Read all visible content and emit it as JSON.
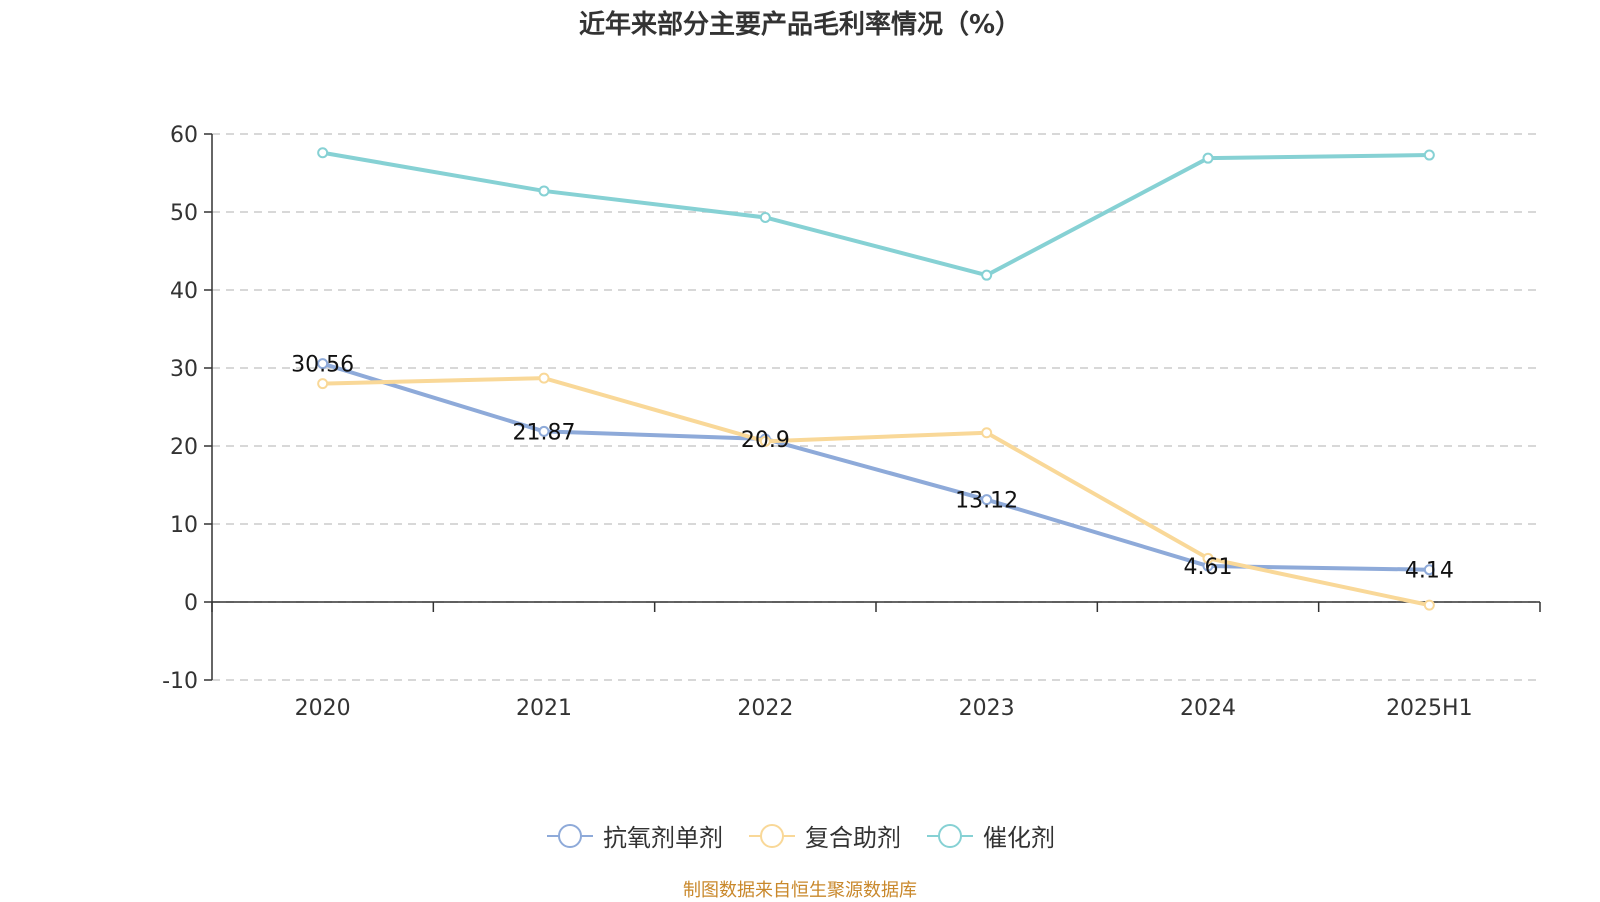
{
  "title": "近年来部分主要产品毛利率情况（%）",
  "source": "制图数据来自恒生聚源数据库",
  "chart_data": {
    "type": "line",
    "categories": [
      "2020",
      "2021",
      "2022",
      "2023",
      "2024",
      "2025H1"
    ],
    "ylim": [
      -10,
      60
    ],
    "yticks": [
      -10,
      0,
      10,
      20,
      30,
      40,
      50,
      60
    ],
    "grid": true,
    "legend_position": "bottom",
    "series": [
      {
        "name": "抗氧剂单剂",
        "color": "#8eaad9",
        "values": [
          30.56,
          21.87,
          20.9,
          13.12,
          4.61,
          4.14
        ],
        "labels": [
          "30.56",
          "21.87",
          "20.9",
          "13.12",
          "4.61",
          "4.14"
        ]
      },
      {
        "name": "复合助剂",
        "color": "#f9d898",
        "values": [
          28.0,
          28.7,
          20.6,
          21.7,
          5.6,
          -0.4
        ],
        "labels": []
      },
      {
        "name": "催化剂",
        "color": "#86d1d4",
        "values": [
          57.6,
          52.7,
          49.3,
          41.9,
          56.9,
          57.3
        ],
        "labels": []
      }
    ]
  }
}
